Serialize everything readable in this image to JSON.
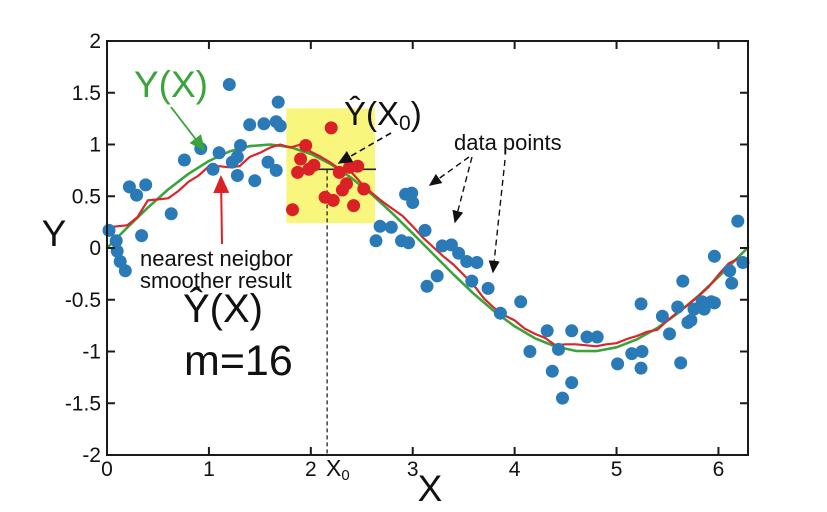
{
  "figure": {
    "background_color": "#ffffff",
    "frame_color": "#1a1a1a"
  },
  "chart_data": {
    "type": "scatter",
    "title": "",
    "xlabel": "X",
    "ylabel": "Y",
    "xlim": [
      0,
      6.29
    ],
    "ylim": [
      -2,
      2
    ],
    "x_ticks": [
      0,
      1,
      2,
      3,
      4,
      5,
      6
    ],
    "y_ticks": [
      -2,
      -1.5,
      -1,
      -0.5,
      0,
      0.5,
      1,
      1.5,
      2
    ],
    "grid": false,
    "legend": "none (annotated with arrows instead)",
    "highlight_region": {
      "x": [
        1.76,
        2.63
      ],
      "y": [
        0.24,
        1.35
      ],
      "color": "#f9f67d"
    },
    "estimate_marker": {
      "x0": 2.16,
      "y_hat": 0.76,
      "mean_line_x": [
        1.83,
        2.64
      ],
      "line_color": "#222222"
    },
    "series": [
      {
        "id": "true_function",
        "name": "Y(X) true function (sine curve)",
        "type": "line",
        "color": "#3aa43a",
        "width": 2.6,
        "x": [
          0,
          0.2,
          0.4,
          0.6,
          0.8,
          1.0,
          1.2,
          1.4,
          1.6,
          1.8,
          2.0,
          2.2,
          2.4,
          2.6,
          2.8,
          3.0,
          3.2,
          3.4,
          3.6,
          3.8,
          4.0,
          4.2,
          4.4,
          4.6,
          4.8,
          5.0,
          5.2,
          5.4,
          5.6,
          5.8,
          6.0,
          6.2,
          6.29
        ],
        "y": [
          0,
          0.199,
          0.389,
          0.565,
          0.717,
          0.841,
          0.932,
          0.985,
          1.0,
          0.974,
          0.909,
          0.808,
          0.675,
          0.516,
          0.335,
          0.141,
          -0.058,
          -0.256,
          -0.443,
          -0.612,
          -0.757,
          -0.872,
          -0.952,
          -0.994,
          -0.996,
          -0.959,
          -0.883,
          -0.773,
          -0.631,
          -0.465,
          -0.279,
          -0.083,
          0.006
        ]
      },
      {
        "id": "nn_smoother",
        "name": "nearest neigbor smoother result Ŷ(X), m=16",
        "type": "line",
        "color": "#d9252b",
        "width": 2.2,
        "x": [
          0,
          0.1,
          0.2,
          0.3,
          0.4,
          0.5,
          0.6,
          0.7,
          0.8,
          0.9,
          1.0,
          1.1,
          1.2,
          1.3,
          1.4,
          1.5,
          1.6,
          1.7,
          1.8,
          1.9,
          2.0,
          2.1,
          2.2,
          2.3,
          2.4,
          2.5,
          2.6,
          2.7,
          2.8,
          2.9,
          3.0,
          3.1,
          3.2,
          3.3,
          3.4,
          3.5,
          3.6,
          3.7,
          3.8,
          3.9,
          4.0,
          4.1,
          4.2,
          4.3,
          4.4,
          4.5,
          4.6,
          4.7,
          4.8,
          4.9,
          5.0,
          5.1,
          5.2,
          5.3,
          5.4,
          5.5,
          5.6,
          5.7,
          5.8,
          5.9,
          6.0,
          6.1,
          6.2,
          6.29
        ],
        "y": [
          0.2,
          0.21,
          0.22,
          0.3,
          0.46,
          0.47,
          0.48,
          0.55,
          0.64,
          0.7,
          0.79,
          0.79,
          0.78,
          0.79,
          0.88,
          0.92,
          0.97,
          1.0,
          0.97,
          1.0,
          0.93,
          0.88,
          0.82,
          0.75,
          0.73,
          0.62,
          0.53,
          0.45,
          0.38,
          0.31,
          0.21,
          0.1,
          0.01,
          -0.08,
          -0.16,
          -0.26,
          -0.36,
          -0.49,
          -0.58,
          -0.65,
          -0.7,
          -0.78,
          -0.83,
          -0.87,
          -0.94,
          -0.93,
          -0.93,
          -0.94,
          -0.95,
          -0.93,
          -0.92,
          -0.88,
          -0.85,
          -0.81,
          -0.79,
          -0.7,
          -0.62,
          -0.55,
          -0.47,
          -0.38,
          -0.26,
          -0.15,
          -0.1,
          -0.12
        ]
      },
      {
        "id": "data_points",
        "name": "data points",
        "type": "scatter",
        "color": "#2b7ab8",
        "r": 6.5,
        "points": [
          [
            0.02,
            0.17
          ],
          [
            0.09,
            0.07
          ],
          [
            0.1,
            -0.03
          ],
          [
            0.13,
            -0.13
          ],
          [
            0.18,
            -0.22
          ],
          [
            0.22,
            0.59
          ],
          [
            0.29,
            0.51
          ],
          [
            0.34,
            0.12
          ],
          [
            0.38,
            0.61
          ],
          [
            0.63,
            0.33
          ],
          [
            0.76,
            0.85
          ],
          [
            0.92,
            0.96
          ],
          [
            1.04,
            0.76
          ],
          [
            1.1,
            0.92
          ],
          [
            1.2,
            1.58
          ],
          [
            1.23,
            0.83
          ],
          [
            1.28,
            0.88
          ],
          [
            1.28,
            0.7
          ],
          [
            1.31,
            0.99
          ],
          [
            1.4,
            1.19
          ],
          [
            1.45,
            0.65
          ],
          [
            1.54,
            1.2
          ],
          [
            1.58,
            0.83
          ],
          [
            1.66,
            1.22
          ],
          [
            1.66,
            0.75
          ],
          [
            1.68,
            1.41
          ],
          [
            1.7,
            1.18
          ],
          [
            2.64,
            0.07
          ],
          [
            2.68,
            0.21
          ],
          [
            2.79,
            0.2
          ],
          [
            2.89,
            0.07
          ],
          [
            2.93,
            0.52
          ],
          [
            2.96,
            0.05
          ],
          [
            2.99,
            0.53
          ],
          [
            3.0,
            0.44
          ],
          [
            3.12,
            0.17
          ],
          [
            3.14,
            -0.37
          ],
          [
            3.24,
            -0.27
          ],
          [
            3.29,
            0.02
          ],
          [
            3.38,
            0.03
          ],
          [
            3.45,
            -0.05
          ],
          [
            3.53,
            -0.13
          ],
          [
            3.58,
            -0.32
          ],
          [
            3.63,
            -0.14
          ],
          [
            3.74,
            -0.39
          ],
          [
            3.86,
            -0.63
          ],
          [
            4.06,
            -0.52
          ],
          [
            4.15,
            -1.0
          ],
          [
            4.32,
            -0.8
          ],
          [
            4.37,
            -1.19
          ],
          [
            4.43,
            -0.98
          ],
          [
            4.47,
            -1.45
          ],
          [
            4.56,
            -0.8
          ],
          [
            4.56,
            -1.3
          ],
          [
            4.71,
            -0.86
          ],
          [
            4.81,
            -0.86
          ],
          [
            5.01,
            -1.12
          ],
          [
            5.15,
            -1.02
          ],
          [
            5.24,
            -0.54
          ],
          [
            5.24,
            -1.16
          ],
          [
            5.25,
            -1.0
          ],
          [
            5.45,
            -0.66
          ],
          [
            5.52,
            -0.83
          ],
          [
            5.6,
            -0.57
          ],
          [
            5.63,
            -1.11
          ],
          [
            5.65,
            -0.32
          ],
          [
            5.7,
            -0.72
          ],
          [
            5.73,
            -0.7
          ],
          [
            5.76,
            -0.59
          ],
          [
            5.84,
            -0.52
          ],
          [
            5.86,
            -0.59
          ],
          [
            5.93,
            -0.52
          ],
          [
            5.96,
            -0.53
          ],
          [
            5.96,
            -0.08
          ],
          [
            6.11,
            -0.22
          ],
          [
            6.13,
            -0.34
          ],
          [
            6.19,
            0.26
          ],
          [
            6.24,
            -0.14
          ]
        ]
      },
      {
        "id": "neighborhood_points",
        "name": "m=16 nearest neighbors of X0 (highlighted red points)",
        "type": "scatter",
        "color": "#dc2126",
        "r": 6.5,
        "points": [
          [
            1.82,
            0.37
          ],
          [
            1.87,
            0.73
          ],
          [
            1.9,
            0.86
          ],
          [
            1.95,
            0.99
          ],
          [
            1.98,
            0.76
          ],
          [
            2.03,
            0.8
          ],
          [
            2.14,
            0.49
          ],
          [
            2.2,
            1.16
          ],
          [
            2.22,
            0.46
          ],
          [
            2.28,
            0.73
          ],
          [
            2.31,
            0.56
          ],
          [
            2.35,
            0.62
          ],
          [
            2.38,
            0.78
          ],
          [
            2.42,
            0.41
          ],
          [
            2.46,
            0.79
          ],
          [
            2.52,
            0.57
          ]
        ]
      }
    ],
    "annotations": {
      "true_curve_label": "Y(X)",
      "estimate_at_x0": {
        "pre": "Ŷ(X",
        "sub": "0",
        "post": ")"
      },
      "data_points_label": "data points",
      "smoother_caption_line1": "nearest neigbor",
      "smoother_caption_line2": "smoother result",
      "estimate_label": "Ŷ(X)",
      "m_label": "m=16",
      "x0_tick": {
        "pre": "X",
        "sub": "0"
      },
      "xlabel": "X",
      "ylabel": "Y"
    }
  }
}
